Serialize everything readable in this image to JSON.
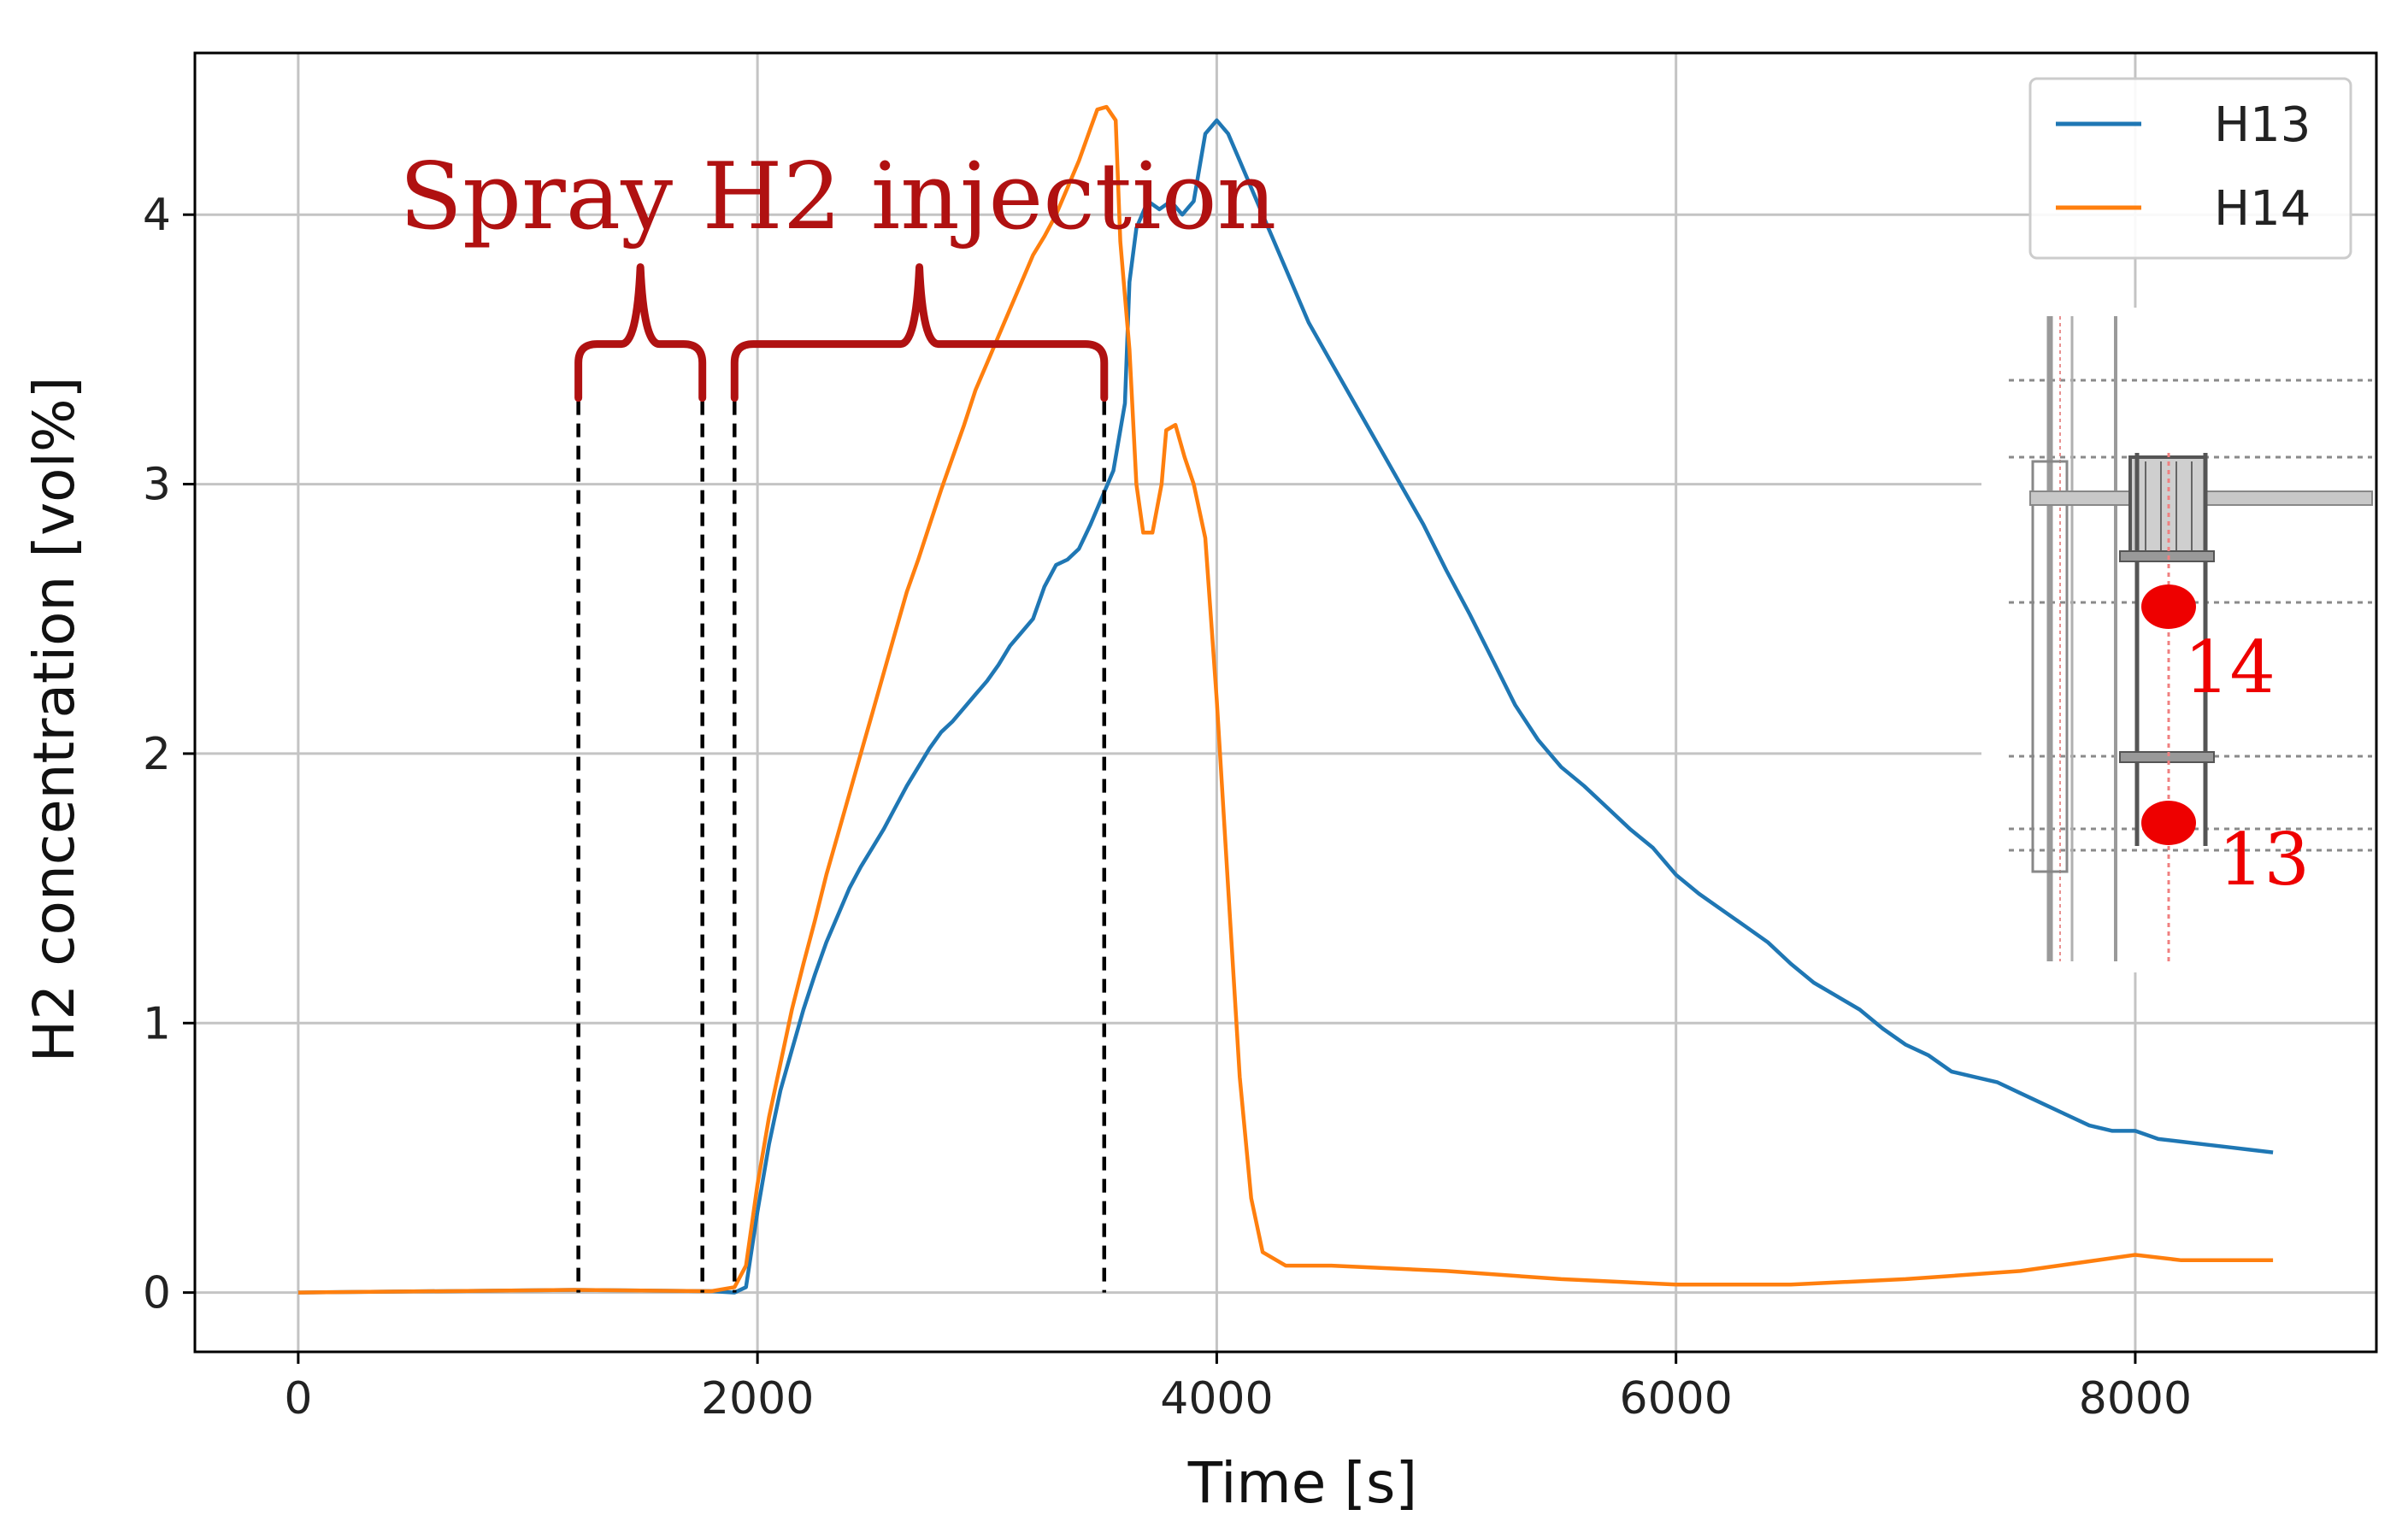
{
  "chart_data": {
    "type": "line",
    "title": "",
    "xlabel": "Time [s]",
    "ylabel": "H2 concentration [vol%]",
    "xlim": [
      -450,
      9050
    ],
    "ylim": [
      -0.22,
      4.6
    ],
    "xticks": [
      0,
      2000,
      4000,
      6000,
      8000
    ],
    "yticks": [
      0,
      1,
      2,
      3,
      4
    ],
    "grid": true,
    "legend_position": "top-right",
    "colors": {
      "H13": "#1f77b4",
      "H14": "#ff7f0e",
      "annotation": "#b01111",
      "inset_marker": "#ee0000"
    },
    "series": [
      {
        "name": "H13",
        "points": [
          [
            0,
            0
          ],
          [
            1200,
            0.01
          ],
          [
            1800,
            0.005
          ],
          [
            1900,
            0
          ],
          [
            1950,
            0.02
          ],
          [
            2000,
            0.3
          ],
          [
            2050,
            0.55
          ],
          [
            2100,
            0.75
          ],
          [
            2150,
            0.9
          ],
          [
            2200,
            1.05
          ],
          [
            2250,
            1.18
          ],
          [
            2300,
            1.3
          ],
          [
            2350,
            1.4
          ],
          [
            2400,
            1.5
          ],
          [
            2450,
            1.58
          ],
          [
            2500,
            1.65
          ],
          [
            2550,
            1.72
          ],
          [
            2600,
            1.8
          ],
          [
            2650,
            1.88
          ],
          [
            2700,
            1.95
          ],
          [
            2750,
            2.02
          ],
          [
            2800,
            2.08
          ],
          [
            2850,
            2.12
          ],
          [
            2900,
            2.17
          ],
          [
            2950,
            2.22
          ],
          [
            3000,
            2.27
          ],
          [
            3050,
            2.33
          ],
          [
            3100,
            2.4
          ],
          [
            3150,
            2.45
          ],
          [
            3200,
            2.5
          ],
          [
            3250,
            2.62
          ],
          [
            3300,
            2.7
          ],
          [
            3350,
            2.72
          ],
          [
            3400,
            2.76
          ],
          [
            3450,
            2.85
          ],
          [
            3500,
            2.95
          ],
          [
            3550,
            3.05
          ],
          [
            3600,
            3.3
          ],
          [
            3620,
            3.75
          ],
          [
            3650,
            3.95
          ],
          [
            3700,
            4.05
          ],
          [
            3750,
            4.02
          ],
          [
            3800,
            4.05
          ],
          [
            3850,
            4.0
          ],
          [
            3900,
            4.05
          ],
          [
            3950,
            4.3
          ],
          [
            4000,
            4.35
          ],
          [
            4050,
            4.3
          ],
          [
            4100,
            4.2
          ],
          [
            4200,
            4.0
          ],
          [
            4300,
            3.8
          ],
          [
            4400,
            3.6
          ],
          [
            4500,
            3.45
          ],
          [
            4600,
            3.3
          ],
          [
            4700,
            3.15
          ],
          [
            4800,
            3.0
          ],
          [
            4900,
            2.85
          ],
          [
            5000,
            2.68
          ],
          [
            5100,
            2.52
          ],
          [
            5200,
            2.35
          ],
          [
            5300,
            2.18
          ],
          [
            5400,
            2.05
          ],
          [
            5500,
            1.95
          ],
          [
            5600,
            1.88
          ],
          [
            5700,
            1.8
          ],
          [
            5800,
            1.72
          ],
          [
            5900,
            1.65
          ],
          [
            6000,
            1.55
          ],
          [
            6100,
            1.48
          ],
          [
            6200,
            1.42
          ],
          [
            6300,
            1.36
          ],
          [
            6400,
            1.3
          ],
          [
            6500,
            1.22
          ],
          [
            6600,
            1.15
          ],
          [
            6700,
            1.1
          ],
          [
            6800,
            1.05
          ],
          [
            6900,
            0.98
          ],
          [
            7000,
            0.92
          ],
          [
            7100,
            0.88
          ],
          [
            7200,
            0.82
          ],
          [
            7300,
            0.8
          ],
          [
            7400,
            0.78
          ],
          [
            7500,
            0.74
          ],
          [
            7600,
            0.7
          ],
          [
            7700,
            0.66
          ],
          [
            7800,
            0.62
          ],
          [
            7900,
            0.6
          ],
          [
            8000,
            0.6
          ],
          [
            8100,
            0.57
          ],
          [
            8200,
            0.56
          ],
          [
            8300,
            0.55
          ],
          [
            8400,
            0.54
          ],
          [
            8500,
            0.53
          ],
          [
            8600,
            0.52
          ]
        ]
      },
      {
        "name": "H14",
        "points": [
          [
            0,
            0
          ],
          [
            1200,
            0.01
          ],
          [
            1800,
            0.005
          ],
          [
            1900,
            0.02
          ],
          [
            1950,
            0.1
          ],
          [
            2000,
            0.4
          ],
          [
            2050,
            0.65
          ],
          [
            2100,
            0.85
          ],
          [
            2150,
            1.05
          ],
          [
            2200,
            1.22
          ],
          [
            2250,
            1.38
          ],
          [
            2300,
            1.55
          ],
          [
            2350,
            1.7
          ],
          [
            2400,
            1.85
          ],
          [
            2450,
            2.0
          ],
          [
            2500,
            2.15
          ],
          [
            2550,
            2.3
          ],
          [
            2600,
            2.45
          ],
          [
            2650,
            2.6
          ],
          [
            2700,
            2.72
          ],
          [
            2750,
            2.85
          ],
          [
            2800,
            2.98
          ],
          [
            2850,
            3.1
          ],
          [
            2900,
            3.22
          ],
          [
            2950,
            3.35
          ],
          [
            3000,
            3.45
          ],
          [
            3050,
            3.55
          ],
          [
            3100,
            3.65
          ],
          [
            3150,
            3.75
          ],
          [
            3200,
            3.85
          ],
          [
            3250,
            3.92
          ],
          [
            3300,
            4.0
          ],
          [
            3350,
            4.1
          ],
          [
            3400,
            4.2
          ],
          [
            3450,
            4.32
          ],
          [
            3480,
            4.39
          ],
          [
            3520,
            4.4
          ],
          [
            3560,
            4.35
          ],
          [
            3580,
            3.9
          ],
          [
            3620,
            3.5
          ],
          [
            3650,
            3.0
          ],
          [
            3680,
            2.82
          ],
          [
            3720,
            2.82
          ],
          [
            3760,
            3.0
          ],
          [
            3780,
            3.2
          ],
          [
            3820,
            3.22
          ],
          [
            3860,
            3.1
          ],
          [
            3900,
            3.0
          ],
          [
            3950,
            2.8
          ],
          [
            4000,
            2.2
          ],
          [
            4050,
            1.5
          ],
          [
            4100,
            0.8
          ],
          [
            4150,
            0.35
          ],
          [
            4200,
            0.15
          ],
          [
            4300,
            0.1
          ],
          [
            4500,
            0.1
          ],
          [
            5000,
            0.08
          ],
          [
            5500,
            0.05
          ],
          [
            6000,
            0.03
          ],
          [
            6500,
            0.03
          ],
          [
            7000,
            0.05
          ],
          [
            7500,
            0.08
          ],
          [
            8000,
            0.14
          ],
          [
            8200,
            0.12
          ],
          [
            8600,
            0.12
          ]
        ]
      }
    ],
    "annotations": {
      "title": "Spray H2 injection",
      "dashed_lines_x": [
        1220,
        1760,
        1900,
        3510
      ],
      "braces": [
        {
          "x_start": 1220,
          "x_end": 1760
        },
        {
          "x_start": 1900,
          "x_end": 3510
        }
      ]
    },
    "inset": {
      "labels": [
        "14",
        "13"
      ]
    }
  }
}
